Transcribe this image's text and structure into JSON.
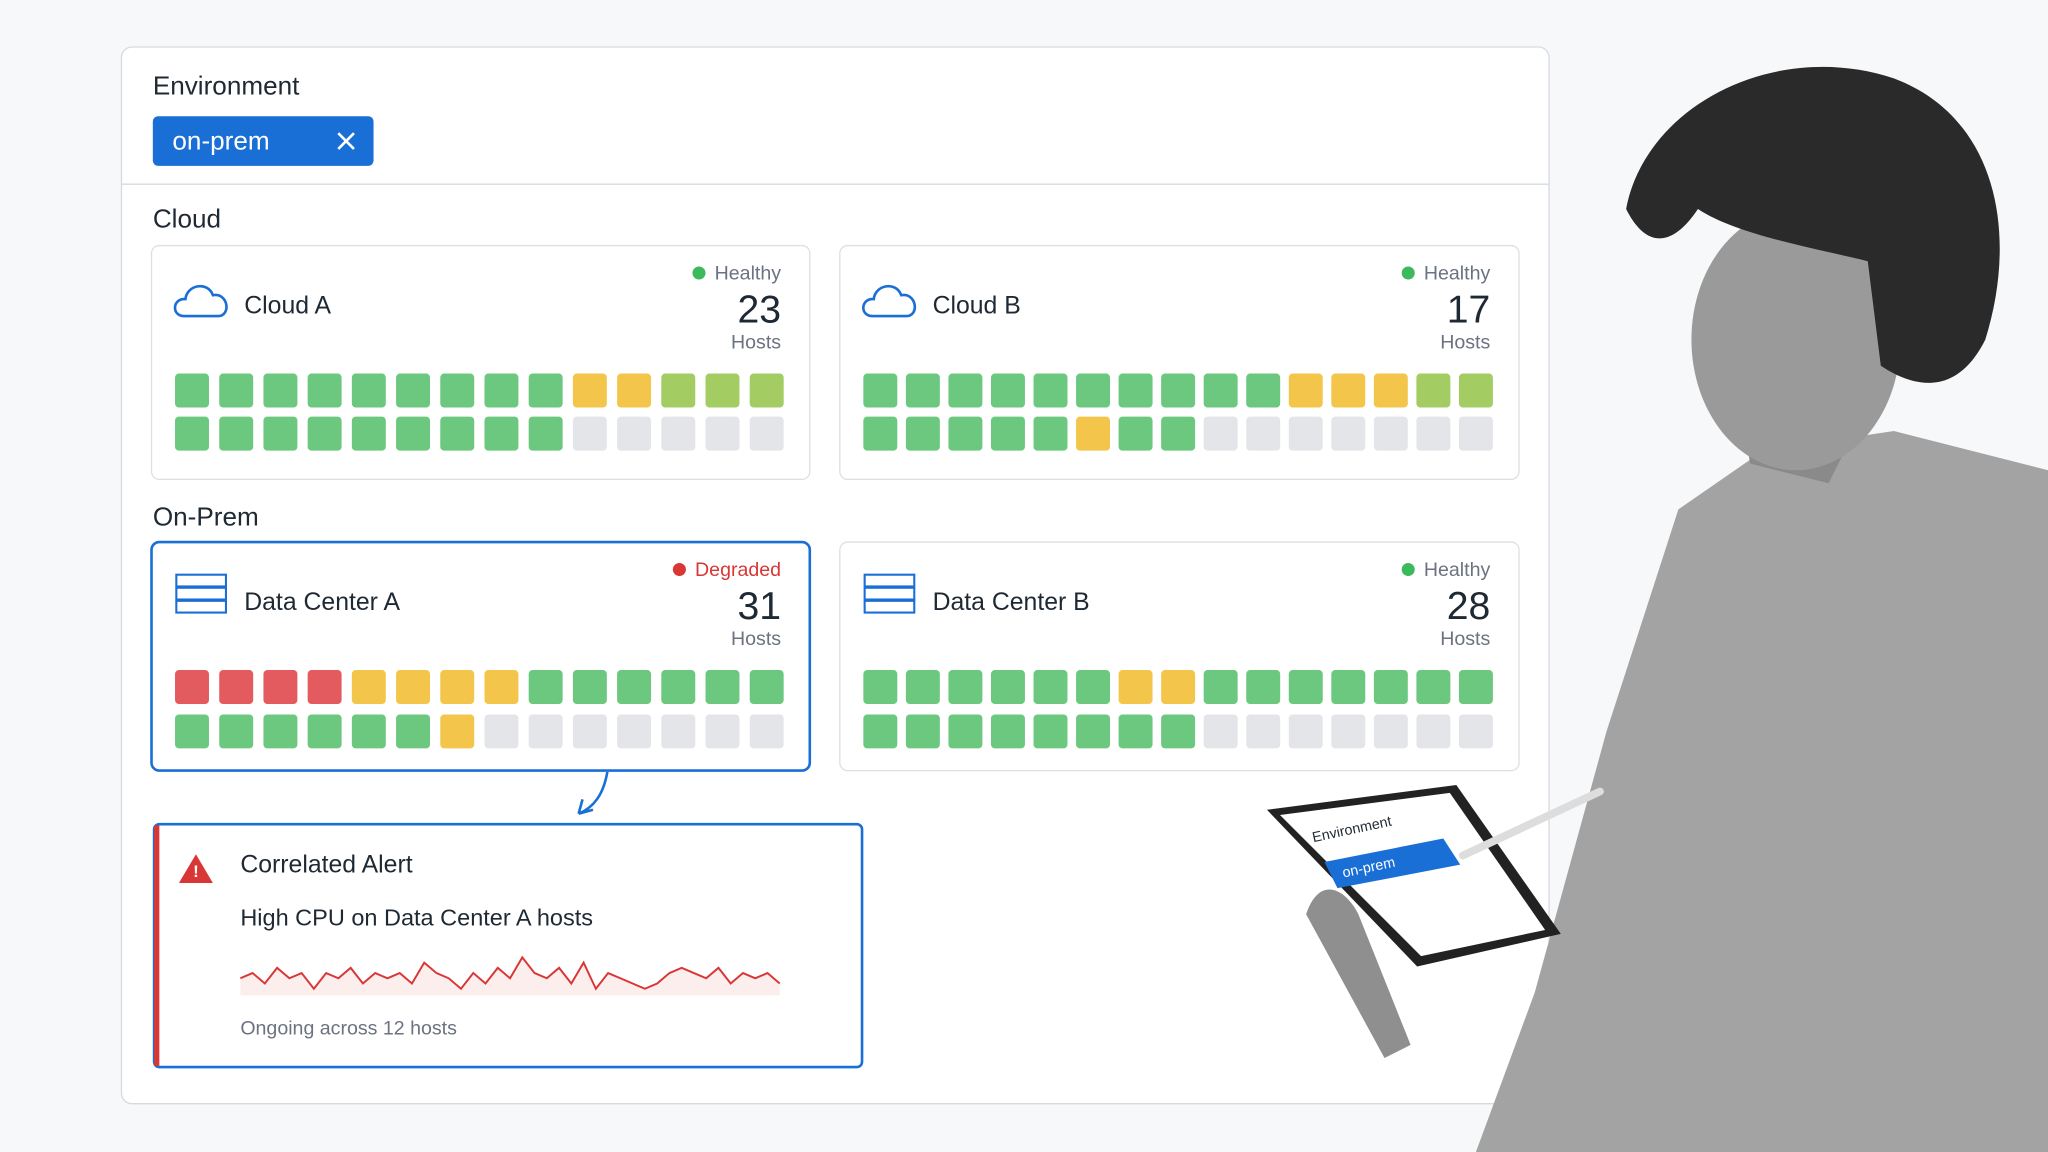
{
  "filter": {
    "label": "Environment",
    "chip": "on-prem"
  },
  "sections": [
    {
      "title": "Cloud",
      "cards": [
        {
          "name": "Cloud A",
          "status": "Healthy",
          "status_color": "#3cb95a",
          "count": 23,
          "unit": "Hosts",
          "border_color": "#dcdfe4",
          "tiles": [
            [
              "#6cc77f",
              "#6cc77f",
              "#6cc77f",
              "#6cc77f",
              "#6cc77f",
              "#6cc77f",
              "#6cc77f",
              "#6cc77f",
              "#6cc77f",
              "#f3c64b",
              "#f3c64b",
              "#a3cc63",
              "#a3cc63",
              "#a3cc63"
            ],
            [
              "#6cc77f",
              "#6cc77f",
              "#6cc77f",
              "#6cc77f",
              "#6cc77f",
              "#6cc77f",
              "#6cc77f",
              "#6cc77f",
              "#6cc77f",
              "#e3e5e9",
              "#e3e5e9",
              "#e3e5e9",
              "#e3e5e9",
              "#e3e5e9"
            ]
          ]
        },
        {
          "name": "Cloud B",
          "status": "Healthy",
          "status_color": "#3cb95a",
          "count": 17,
          "unit": "Hosts",
          "border_color": "#dcdfe4",
          "tiles": [
            [
              "#6cc77f",
              "#6cc77f",
              "#6cc77f",
              "#6cc77f",
              "#6cc77f",
              "#6cc77f",
              "#6cc77f",
              "#6cc77f",
              "#6cc77f",
              "#6cc77f",
              "#f3c64b",
              "#f3c64b",
              "#f3c64b",
              "#a3cc63",
              "#a3cc63"
            ],
            [
              "#6cc77f",
              "#6cc77f",
              "#6cc77f",
              "#6cc77f",
              "#6cc77f",
              "#f3c64b",
              "#6cc77f",
              "#6cc77f",
              "#e3e5e9",
              "#e3e5e9",
              "#e3e5e9",
              "#e3e5e9",
              "#e3e5e9",
              "#e3e5e9",
              "#e3e5e9"
            ]
          ]
        }
      ]
    },
    {
      "title": "On-Prem",
      "cards": [
        {
          "name": "Data Center A",
          "status": "Degraded",
          "status_color": "#d93636",
          "count": 31,
          "unit": "Hosts",
          "border_color": "#1a6fd6",
          "tiles": [
            [
              "#e35b5e",
              "#e35b5e",
              "#e35b5e",
              "#e35b5e",
              "#f3c64b",
              "#f3c64b",
              "#f3c64b",
              "#f3c64b",
              "#6cc77f",
              "#6cc77f",
              "#6cc77f",
              "#6cc77f",
              "#6cc77f",
              "#6cc77f"
            ],
            [
              "#6cc77f",
              "#6cc77f",
              "#6cc77f",
              "#6cc77f",
              "#6cc77f",
              "#6cc77f",
              "#f3c64b",
              "#e3e5e9",
              "#e3e5e9",
              "#e3e5e9",
              "#e3e5e9",
              "#e3e5e9",
              "#e3e5e9",
              "#e3e5e9"
            ]
          ]
        },
        {
          "name": "Data Center B",
          "status": "Healthy",
          "status_color": "#3cb95a",
          "count": 28,
          "unit": "Hosts",
          "border_color": "#dcdfe4",
          "tiles": [
            [
              "#6cc77f",
              "#6cc77f",
              "#6cc77f",
              "#6cc77f",
              "#6cc77f",
              "#6cc77f",
              "#f3c64b",
              "#f3c64b",
              "#6cc77f",
              "#6cc77f",
              "#6cc77f",
              "#6cc77f",
              "#6cc77f",
              "#6cc77f",
              "#6cc77f"
            ],
            [
              "#6cc77f",
              "#6cc77f",
              "#6cc77f",
              "#6cc77f",
              "#6cc77f",
              "#6cc77f",
              "#6cc77f",
              "#6cc77f",
              "#e3e5e9",
              "#e3e5e9",
              "#e3e5e9",
              "#e3e5e9",
              "#e3e5e9",
              "#e3e5e9",
              "#e3e5e9"
            ]
          ]
        }
      ]
    }
  ],
  "alert": {
    "title": "Correlated Alert",
    "message": "High CPU on Data Center A hosts",
    "footer": "Ongoing across 12 hosts",
    "color": "#d93636",
    "sparkline": [
      5,
      6,
      4,
      7,
      5,
      6,
      3,
      6,
      5,
      7,
      4,
      6,
      5,
      6,
      4,
      8,
      6,
      5,
      3,
      6,
      4,
      7,
      5,
      9,
      6,
      5,
      7,
      4,
      8,
      3,
      6,
      5,
      4,
      3,
      4,
      6,
      7,
      6,
      5,
      7,
      4,
      6,
      5,
      6,
      4
    ]
  },
  "tablet": {
    "label": "Environment",
    "chip": "on-prem"
  }
}
